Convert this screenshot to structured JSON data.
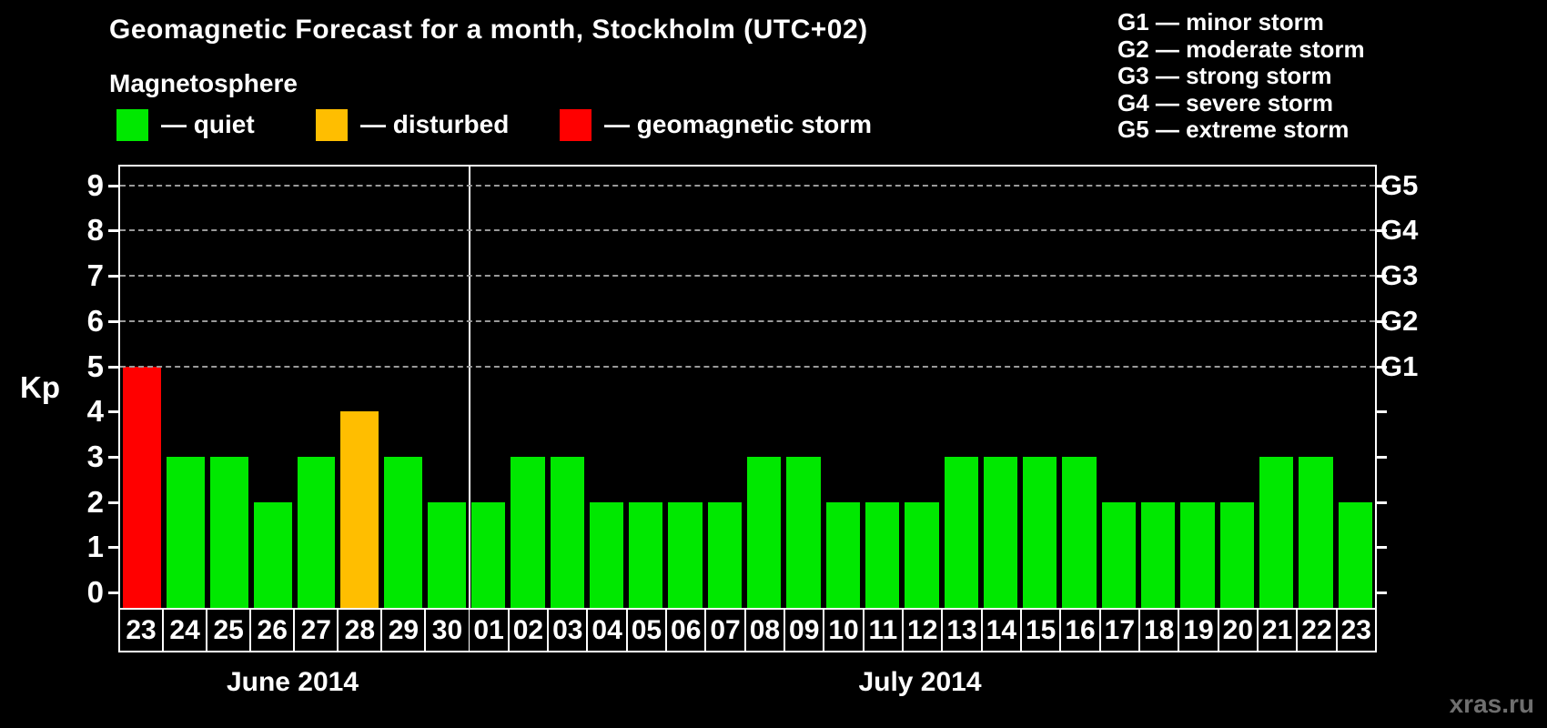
{
  "title": "Geomagnetic Forecast for a month, Stockholm (UTC+02)",
  "subtitle": "Magnetosphere",
  "legend": {
    "quiet": "— quiet",
    "disturbed": "— disturbed",
    "storm": "— geomagnetic storm"
  },
  "g_legend": [
    "G1 — minor storm",
    "G2 — moderate storm",
    "G3 — strong storm",
    "G4 — severe storm",
    "G5 — extreme storm"
  ],
  "colors": {
    "quiet": "#00e800",
    "disturbed": "#ffbe00",
    "storm": "#ff0000",
    "grid": "#9a9a9a",
    "axis": "#ffffff",
    "watermark": "#6f6f6f",
    "background": "#000000"
  },
  "axis": {
    "kp_label": "Kp",
    "y_ticks": [
      0,
      1,
      2,
      3,
      4,
      5,
      6,
      7,
      8,
      9
    ],
    "gridlines": [
      5,
      6,
      7,
      8,
      9
    ],
    "g_labels": {
      "5": "G1",
      "6": "G2",
      "7": "G3",
      "8": "G4",
      "9": "G5"
    }
  },
  "watermark": "xras.ru",
  "chart_data": {
    "type": "bar",
    "title": "Geomagnetic Forecast for a month, Stockholm (UTC+02)",
    "ylabel": "Kp",
    "ylim": [
      0,
      9
    ],
    "grid": "dashed horizontal at Kp 5-9",
    "legend_position": "top-left (magnetosphere states), top-right (G storm scale)",
    "right_axis_labels": [
      "G1",
      "G2",
      "G3",
      "G4",
      "G5"
    ],
    "months": [
      {
        "label": "June 2014",
        "days": [
          "23",
          "24",
          "25",
          "26",
          "27",
          "28",
          "29",
          "30"
        ],
        "values": [
          5,
          3,
          3,
          2,
          3,
          4,
          3,
          2
        ],
        "status": [
          "storm",
          "quiet",
          "quiet",
          "quiet",
          "quiet",
          "disturbed",
          "quiet",
          "quiet"
        ]
      },
      {
        "label": "July 2014",
        "days": [
          "01",
          "02",
          "03",
          "04",
          "05",
          "06",
          "07",
          "08",
          "09",
          "10",
          "11",
          "12",
          "13",
          "14",
          "15",
          "16",
          "17",
          "18",
          "19",
          "20",
          "21",
          "22",
          "23"
        ],
        "values": [
          2,
          3,
          3,
          2,
          2,
          2,
          2,
          3,
          3,
          2,
          2,
          2,
          3,
          3,
          3,
          3,
          2,
          2,
          2,
          2,
          3,
          3,
          2
        ],
        "status": [
          "quiet",
          "quiet",
          "quiet",
          "quiet",
          "quiet",
          "quiet",
          "quiet",
          "quiet",
          "quiet",
          "quiet",
          "quiet",
          "quiet",
          "quiet",
          "quiet",
          "quiet",
          "quiet",
          "quiet",
          "quiet",
          "quiet",
          "quiet",
          "quiet",
          "quiet",
          "quiet"
        ]
      }
    ]
  }
}
